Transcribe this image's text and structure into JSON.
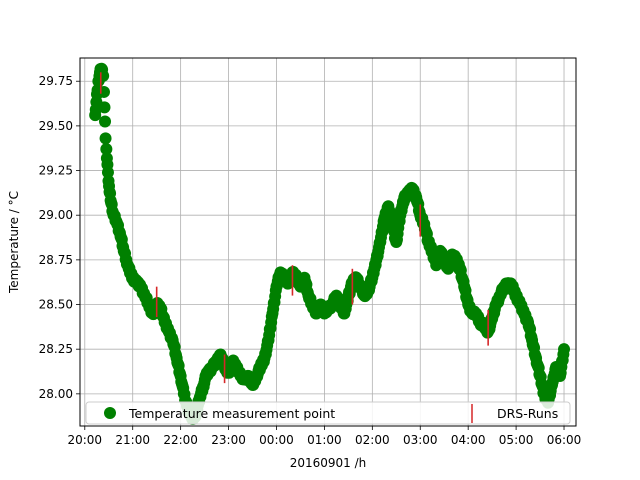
{
  "chart_data": {
    "type": "scatter",
    "xlabel": "20160901 /h",
    "ylabel": "Temperature / °C",
    "x_ticks": [
      "20:00",
      "21:00",
      "22:00",
      "23:00",
      "00:00",
      "01:00",
      "02:00",
      "03:00",
      "04:00",
      "05:00",
      "06:00"
    ],
    "y_ticks": [
      "28.00",
      "28.25",
      "28.50",
      "28.75",
      "29.00",
      "29.25",
      "29.50",
      "29.75"
    ],
    "xlim": [
      "20:00",
      "06:00"
    ],
    "ylim": [
      27.82,
      29.88
    ],
    "grid": true,
    "legend": {
      "placement": "bottom",
      "entries": [
        {
          "label": "Temperature measurement point",
          "marker": "circle",
          "color": "#008000"
        },
        {
          "label": "DRS-Runs",
          "marker": "vertical-line",
          "color": "#d62728"
        }
      ]
    },
    "series": [
      {
        "name": "Temperature measurement point",
        "color": "#008000",
        "points": [
          [
            "20:13",
            29.56
          ],
          [
            "20:16",
            29.7
          ],
          [
            "20:17",
            29.75
          ],
          [
            "20:19",
            29.8
          ],
          [
            "20:21",
            29.82
          ],
          [
            "20:23",
            29.78
          ],
          [
            "20:24",
            29.69
          ],
          [
            "20:26",
            29.43
          ],
          [
            "20:27",
            29.37
          ],
          [
            "20:29",
            29.24
          ],
          [
            "20:31",
            29.13
          ],
          [
            "20:33",
            29.07
          ],
          [
            "20:36",
            29.0
          ],
          [
            "20:40",
            28.96
          ],
          [
            "20:44",
            28.9
          ],
          [
            "20:48",
            28.82
          ],
          [
            "20:52",
            28.75
          ],
          [
            "20:55",
            28.7
          ],
          [
            "21:00",
            28.65
          ],
          [
            "21:05",
            28.62
          ],
          [
            "21:10",
            28.6
          ],
          [
            "21:15",
            28.55
          ],
          [
            "21:20",
            28.5
          ],
          [
            "21:25",
            28.45
          ],
          [
            "21:30",
            28.5
          ],
          [
            "21:35",
            28.48
          ],
          [
            "21:40",
            28.4
          ],
          [
            "21:45",
            28.35
          ],
          [
            "21:50",
            28.3
          ],
          [
            "21:55",
            28.2
          ],
          [
            "22:00",
            28.1
          ],
          [
            "22:04",
            28.0
          ],
          [
            "22:08",
            27.93
          ],
          [
            "22:12",
            27.88
          ],
          [
            "22:16",
            27.86
          ],
          [
            "22:20",
            27.9
          ],
          [
            "22:24",
            27.98
          ],
          [
            "22:28",
            28.04
          ],
          [
            "22:32",
            28.1
          ],
          [
            "22:36",
            28.13
          ],
          [
            "22:40",
            28.15
          ],
          [
            "22:45",
            28.18
          ],
          [
            "22:50",
            28.22
          ],
          [
            "22:55",
            28.15
          ],
          [
            "23:00",
            28.12
          ],
          [
            "23:05",
            28.18
          ],
          [
            "23:10",
            28.15
          ],
          [
            "23:15",
            28.1
          ],
          [
            "23:20",
            28.08
          ],
          [
            "23:25",
            28.1
          ],
          [
            "23:30",
            28.05
          ],
          [
            "23:35",
            28.1
          ],
          [
            "23:40",
            28.15
          ],
          [
            "23:45",
            28.2
          ],
          [
            "23:50",
            28.3
          ],
          [
            "23:55",
            28.45
          ],
          [
            "00:00",
            28.6
          ],
          [
            "00:05",
            28.68
          ],
          [
            "00:10",
            28.65
          ],
          [
            "00:15",
            28.62
          ],
          [
            "00:20",
            28.68
          ],
          [
            "00:25",
            28.65
          ],
          [
            "00:30",
            28.6
          ],
          [
            "00:35",
            28.65
          ],
          [
            "00:40",
            28.55
          ],
          [
            "00:45",
            28.5
          ],
          [
            "00:50",
            28.45
          ],
          [
            "00:55",
            28.5
          ],
          [
            "01:00",
            28.45
          ],
          [
            "01:05",
            28.48
          ],
          [
            "01:10",
            28.5
          ],
          [
            "01:15",
            28.55
          ],
          [
            "01:20",
            28.5
          ],
          [
            "01:25",
            28.45
          ],
          [
            "01:30",
            28.55
          ],
          [
            "01:35",
            28.62
          ],
          [
            "01:40",
            28.65
          ],
          [
            "01:45",
            28.6
          ],
          [
            "01:50",
            28.55
          ],
          [
            "01:55",
            28.58
          ],
          [
            "02:00",
            28.65
          ],
          [
            "02:05",
            28.75
          ],
          [
            "02:10",
            28.85
          ],
          [
            "02:15",
            28.98
          ],
          [
            "02:20",
            29.05
          ],
          [
            "02:25",
            28.95
          ],
          [
            "02:30",
            28.85
          ],
          [
            "02:35",
            29.0
          ],
          [
            "02:40",
            29.1
          ],
          [
            "02:45",
            29.12
          ],
          [
            "02:50",
            29.15
          ],
          [
            "02:55",
            29.1
          ],
          [
            "03:00",
            29.0
          ],
          [
            "03:05",
            28.95
          ],
          [
            "03:10",
            28.85
          ],
          [
            "03:15",
            28.8
          ],
          [
            "03:20",
            28.72
          ],
          [
            "03:25",
            28.8
          ],
          [
            "03:30",
            28.75
          ],
          [
            "03:35",
            28.7
          ],
          [
            "03:40",
            28.78
          ],
          [
            "03:45",
            28.75
          ],
          [
            "03:50",
            28.7
          ],
          [
            "03:55",
            28.6
          ],
          [
            "04:00",
            28.5
          ],
          [
            "04:05",
            28.45
          ],
          [
            "04:10",
            28.45
          ],
          [
            "04:15",
            28.4
          ],
          [
            "04:20",
            28.38
          ],
          [
            "04:25",
            28.35
          ],
          [
            "04:30",
            28.42
          ],
          [
            "04:35",
            28.5
          ],
          [
            "04:40",
            28.55
          ],
          [
            "04:45",
            28.6
          ],
          [
            "04:50",
            28.62
          ],
          [
            "04:55",
            28.6
          ],
          [
            "05:00",
            28.55
          ],
          [
            "05:05",
            28.5
          ],
          [
            "05:10",
            28.45
          ],
          [
            "05:15",
            28.4
          ],
          [
            "05:20",
            28.3
          ],
          [
            "05:25",
            28.2
          ],
          [
            "05:30",
            28.1
          ],
          [
            "05:35",
            28.0
          ],
          [
            "05:40",
            27.95
          ],
          [
            "05:45",
            28.05
          ],
          [
            "05:50",
            28.15
          ],
          [
            "05:55",
            28.1
          ],
          [
            "06:00",
            28.25
          ]
        ]
      }
    ],
    "drs_runs": [
      {
        "time": "20:20",
        "y_low": 29.68,
        "y_high": 29.8
      },
      {
        "time": "21:30",
        "y_low": 28.43,
        "y_high": 28.6
      },
      {
        "time": "22:55",
        "y_low": 28.06,
        "y_high": 28.22
      },
      {
        "time": "00:20",
        "y_low": 28.55,
        "y_high": 28.72
      },
      {
        "time": "01:35",
        "y_low": 28.5,
        "y_high": 28.7
      },
      {
        "time": "03:00",
        "y_low": 28.88,
        "y_high": 29.06
      },
      {
        "time": "04:25",
        "y_low": 28.27,
        "y_high": 28.47
      }
    ]
  }
}
